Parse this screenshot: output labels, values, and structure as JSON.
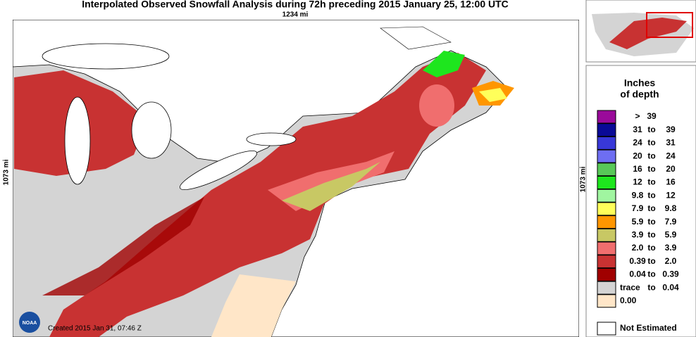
{
  "title": "Interpolated Observed Snowfall Analysis during 72h preceding 2015 January 25, 12:00 UTC",
  "scale_x": "1234 mi",
  "scale_y_left": "1073 mi",
  "scale_y_right": "1073 mi",
  "created": "Created 2015 Jan 31, 07:46 Z",
  "logo": "NOAA",
  "legend": {
    "title_line1": "Inches",
    "title_line2": "of depth",
    "items": [
      {
        "label": [
          ">",
          "39",
          ""
        ],
        "color": "#9a0a9a"
      },
      {
        "label": [
          "31",
          "to",
          "39"
        ],
        "color": "#0a0a96"
      },
      {
        "label": [
          "24",
          "to",
          "31"
        ],
        "color": "#3838d8"
      },
      {
        "label": [
          "20",
          "to",
          "24"
        ],
        "color": "#6e6ef2"
      },
      {
        "label": [
          "16",
          "to",
          "20"
        ],
        "color": "#58c858"
      },
      {
        "label": [
          "12",
          "to",
          "16"
        ],
        "color": "#1ee61e"
      },
      {
        "label": [
          "9.8",
          "to",
          "12"
        ],
        "color": "#a0f5a0"
      },
      {
        "label": [
          "7.9",
          "to",
          "9.8"
        ],
        "color": "#ffff5a"
      },
      {
        "label": [
          "5.9",
          "to",
          "7.9"
        ],
        "color": "#ff9600"
      },
      {
        "label": [
          "3.9",
          "to",
          "5.9"
        ],
        "color": "#c8c864"
      },
      {
        "label": [
          "2.0",
          "to",
          "3.9"
        ],
        "color": "#f06e6e"
      },
      {
        "label": [
          "0.39",
          "to",
          "2.0"
        ],
        "color": "#c83232"
      },
      {
        "label": [
          "0.04",
          "to",
          "0.39"
        ],
        "color": "#a00000"
      },
      {
        "label": [
          "trace",
          "to",
          "0.04"
        ],
        "color": "#d4d4d4"
      },
      {
        "label": [
          "0.00",
          "",
          ""
        ],
        "color": "#ffe6c8"
      }
    ],
    "not_estimated": "Not Estimated"
  }
}
